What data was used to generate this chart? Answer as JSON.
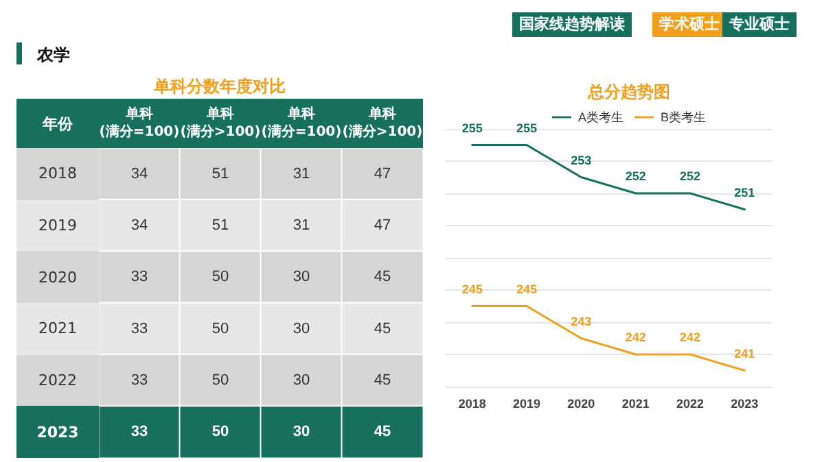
{
  "chart_data": [
    {
      "type": "heatmap",
      "title": "单科分数年度对比",
      "ylabel": "年份",
      "categories": [
        "单科\n(满分=100)",
        "单科\n(满分>100)",
        "单科\n(满分=100)",
        "单科\n(满分>100)"
      ],
      "y_categories": [
        "2018",
        "2019",
        "2020",
        "2021",
        "2022",
        "2023"
      ],
      "cells": [
        [
          34,
          51,
          31,
          47
        ],
        [
          34,
          51,
          31,
          47
        ],
        [
          33,
          50,
          30,
          45
        ],
        [
          33,
          50,
          30,
          45
        ],
        [
          33,
          50,
          30,
          45
        ],
        [
          33,
          50,
          30,
          45
        ]
      ],
      "data_labels": true,
      "annotations": [
        "农学",
        "国家线趋势解读",
        "学术硕士",
        "专业硕士"
      ]
    },
    {
      "type": "line",
      "title": "总分趋势图",
      "categories": [
        "2018",
        "2019",
        "2020",
        "2021",
        "2022",
        "2023"
      ],
      "series": [
        {
          "name": "A类考生",
          "color": "#17705e",
          "values": [
            255,
            255,
            253,
            252,
            252,
            251
          ]
        },
        {
          "name": "B类考生",
          "color": "#f0a01e",
          "values": [
            245,
            245,
            243,
            242,
            242,
            241
          ]
        }
      ],
      "ylim": [
        240,
        256
      ],
      "yticks": [
        {
          "value": 240,
          "label": null
        },
        {
          "value": 242,
          "label": null
        },
        {
          "value": 244,
          "label": null
        },
        {
          "value": 246,
          "label": null
        },
        {
          "value": 248,
          "label": null
        },
        {
          "value": 250,
          "label": null
        },
        {
          "value": 252,
          "label": null
        },
        {
          "value": 254,
          "label": null
        },
        {
          "value": 256,
          "label": null
        }
      ],
      "grid": "y",
      "legend": "top",
      "tick_labels": "x",
      "data_labels": true,
      "marker": "none",
      "line_style": "solid"
    }
  ]
}
